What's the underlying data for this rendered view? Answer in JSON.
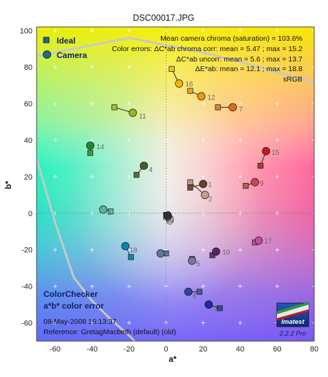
{
  "chart_data": {
    "type": "scatter",
    "title": "DSC00017.JPG",
    "xlabel": "a*",
    "ylabel": "b*",
    "xlim": [
      -70,
      80
    ],
    "ylim": [
      -70,
      102
    ],
    "xticks": [
      -60,
      -40,
      -20,
      0,
      20,
      40,
      60,
      80
    ],
    "yticks": [
      -60,
      -40,
      -20,
      0,
      20,
      40,
      60,
      80,
      100
    ],
    "legend_position": "top-left",
    "legend": {
      "ideal": "Ideal",
      "camera": "Camera"
    },
    "annotations": [
      "Mean camera chroma (saturation) = 103.6%",
      "Color errors: ΔC*ab chroma corr:  mean = 5.47 ;  max = 15.2",
      "ΔC*ab uncorr:  mean = 5.6 ;  max = 13.7",
      "ΔE*ab:  mean = 12.1 ;  max = 18.8",
      "sRGB"
    ],
    "footer": {
      "line1": "ColorChecker",
      "line2": "a*b* color error",
      "date": "08-May-2008 16:13:37",
      "reference": "Reference: GretagMacbeth (default) (old)"
    },
    "logo": {
      "name": "Imatest",
      "version": "2.2.2  Pro"
    },
    "patches": [
      {
        "id": "1",
        "ideal": [
          13,
          14
        ],
        "camera": [
          20,
          16
        ],
        "ideal_color": "#73513f",
        "camera_color": "#6b3f32"
      },
      {
        "id": "2",
        "ideal": [
          13,
          17
        ],
        "camera": [
          21,
          10
        ],
        "ideal_color": "#c2967f",
        "camera_color": "#c89e8a"
      },
      {
        "id": "3",
        "ideal": [
          0,
          -22
        ],
        "camera": [
          -3,
          -22
        ],
        "ideal_color": "#5e7a9c",
        "camera_color": "#5d7a94"
      },
      {
        "id": "4",
        "ideal": [
          -16,
          21
        ],
        "camera": [
          -12,
          26
        ],
        "ideal_color": "#5a6b43",
        "camera_color": "#4e5a28"
      },
      {
        "id": "5",
        "ideal": [
          14,
          -25
        ],
        "camera": [
          14,
          -26
        ],
        "ideal_color": "#8480b0",
        "camera_color": "#7a78a8"
      },
      {
        "id": "6",
        "ideal": [
          -30,
          1
        ],
        "camera": [
          -34,
          2
        ],
        "ideal_color": "#66bdaa",
        "camera_color": "#58b5a2"
      },
      {
        "id": "7",
        "ideal": [
          28,
          58
        ],
        "camera": [
          36,
          58
        ],
        "ideal_color": "#d6803c",
        "camera_color": "#e06a1c"
      },
      {
        "id": "8",
        "ideal": [
          18,
          -43
        ],
        "camera": [
          12,
          -43
        ],
        "ideal_color": "#4a5aa4",
        "camera_color": "#2e48a0"
      },
      {
        "id": "9",
        "ideal": [
          43,
          15
        ],
        "camera": [
          48,
          17
        ],
        "ideal_color": "#c05a62",
        "camera_color": "#d04450"
      },
      {
        "id": "10",
        "ideal": [
          25,
          -23
        ],
        "camera": [
          27,
          -21
        ],
        "ideal_color": "#5c3c6a",
        "camera_color": "#5a2460"
      },
      {
        "id": "11",
        "ideal": [
          -28,
          58
        ],
        "camera": [
          -18,
          55
        ],
        "ideal_color": "#9fbc40",
        "camera_color": "#94b820"
      },
      {
        "id": "12",
        "ideal": [
          13,
          67
        ],
        "camera": [
          19,
          64
        ],
        "ideal_color": "#e5a22e",
        "camera_color": "#ec9a10"
      },
      {
        "id": "13",
        "ideal": [
          29,
          -52
        ],
        "camera": [
          23,
          -50
        ],
        "ideal_color": "#2a3c90",
        "camera_color": "#1a3098"
      },
      {
        "id": "14",
        "ideal": [
          -41,
          33
        ],
        "camera": [
          -41,
          37
        ],
        "ideal_color": "#469648",
        "camera_color": "#248a32"
      },
      {
        "id": "15",
        "ideal": [
          51,
          26
        ],
        "camera": [
          54,
          34
        ],
        "ideal_color": "#b03c38",
        "camera_color": "#c41c20"
      },
      {
        "id": "16",
        "ideal": [
          3,
          79
        ],
        "camera": [
          7,
          71
        ],
        "ideal_color": "#eec418",
        "camera_color": "#f0b800"
      },
      {
        "id": "17",
        "ideal": [
          48,
          -16
        ],
        "camera": [
          50,
          -15
        ],
        "ideal_color": "#ba5a98",
        "camera_color": "#c050a0"
      },
      {
        "id": "18",
        "ideal": [
          -19,
          -24
        ],
        "camera": [
          -22,
          -18
        ],
        "ideal_color": "#1688a6",
        "camera_color": "#0a86aa"
      },
      {
        "id": "19",
        "ideal": [
          0,
          -2
        ],
        "camera": [
          2,
          -4
        ],
        "ideal_color": "#f4f4f0",
        "camera_color": "#e8e8e8"
      },
      {
        "id": "20",
        "ideal": [
          0,
          -1
        ],
        "camera": [
          2,
          -3
        ],
        "ideal_color": "#c8c8c8",
        "camera_color": "#c4c4c4"
      },
      {
        "id": "21",
        "ideal": [
          0,
          -1
        ],
        "camera": [
          1,
          -2
        ],
        "ideal_color": "#a0a0a0",
        "camera_color": "#9c9c9c"
      },
      {
        "id": "22",
        "ideal": [
          0,
          -1
        ],
        "camera": [
          1,
          -2
        ],
        "ideal_color": "#7a7a78",
        "camera_color": "#767676"
      },
      {
        "id": "23",
        "ideal": [
          0,
          -1
        ],
        "camera": [
          1,
          -2
        ],
        "ideal_color": "#555555",
        "camera_color": "#525252"
      },
      {
        "id": "24",
        "ideal": [
          0,
          -1
        ],
        "camera": [
          1,
          -1
        ],
        "ideal_color": "#343434",
        "camera_color": "#303030"
      }
    ],
    "labeled_patch_count": 18,
    "gamut_boundary_color": "#c8c8c8"
  }
}
